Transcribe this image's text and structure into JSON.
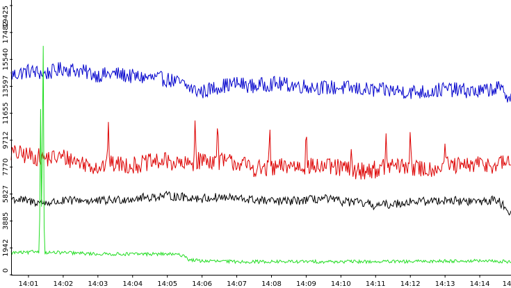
{
  "chart_data": {
    "type": "line",
    "title": "",
    "xlabel": "",
    "ylabel": "",
    "x_tick_labels": [
      "14:01",
      "14:02",
      "14:03",
      "14:04",
      "14:05",
      "14:06",
      "14:07",
      "14:08",
      "14:09",
      "14:10",
      "14:11",
      "14:12",
      "14:13",
      "14:14",
      "14"
    ],
    "y_tick_labels": [
      "0",
      "1942",
      "3885",
      "5827",
      "7770",
      "9712",
      "11655",
      "13597",
      "15540",
      "17482",
      "19425"
    ],
    "x_range_minutes": [
      0.5,
      14.9
    ],
    "ylim": [
      0,
      19425
    ],
    "grid": false,
    "legend": "none",
    "series": [
      {
        "color": "#0000cc",
        "x": [
          0.5,
          1.0,
          1.5,
          2.0,
          2.5,
          3.0,
          3.5,
          4.0,
          4.5,
          5.0,
          5.4,
          5.8,
          6.0,
          6.5,
          7.0,
          7.5,
          8.0,
          8.5,
          9.0,
          9.5,
          10.0,
          10.5,
          11.0,
          11.5,
          12.0,
          12.5,
          13.0,
          13.5,
          14.0,
          14.5,
          14.9
        ],
        "y": [
          14400,
          14700,
          14500,
          14900,
          14700,
          14400,
          14500,
          14300,
          14200,
          14100,
          13800,
          13300,
          13200,
          13600,
          13800,
          13600,
          13800,
          13700,
          13600,
          13500,
          13500,
          13400,
          13300,
          13300,
          13200,
          13200,
          13400,
          13300,
          13200,
          13500,
          12800
        ],
        "noise": 550
      },
      {
        "color": "#dd0000",
        "x": [
          0.5,
          1.0,
          1.5,
          2.0,
          2.5,
          3.0,
          3.5,
          4.0,
          4.5,
          5.0,
          5.5,
          6.0,
          6.5,
          7.0,
          7.5,
          8.0,
          8.5,
          9.0,
          9.5,
          10.0,
          10.5,
          11.0,
          11.5,
          12.0,
          12.5,
          13.0,
          13.5,
          14.0,
          14.5,
          14.9
        ],
        "y": [
          8800,
          8600,
          8400,
          8500,
          8100,
          7800,
          8000,
          7900,
          8100,
          8200,
          7900,
          8300,
          8200,
          8100,
          7700,
          7600,
          7900,
          7800,
          7800,
          7700,
          7500,
          7600,
          7900,
          7700,
          7600,
          7900,
          7800,
          8000,
          7900,
          8300
        ],
        "noise": 650,
        "spikes": [
          [
            3.3,
            11300
          ],
          [
            5.8,
            11400
          ],
          [
            6.45,
            11500
          ],
          [
            7.95,
            11200
          ],
          [
            9.0,
            11000
          ],
          [
            10.3,
            9200
          ],
          [
            11.3,
            10200
          ],
          [
            12.0,
            10800
          ],
          [
            13.0,
            9600
          ]
        ]
      },
      {
        "color": "#000000",
        "x": [
          0.5,
          1.0,
          1.5,
          2.0,
          2.5,
          3.0,
          3.5,
          4.0,
          4.5,
          5.0,
          5.5,
          6.0,
          6.5,
          7.0,
          7.5,
          8.0,
          8.5,
          9.0,
          9.5,
          10.0,
          10.5,
          11.0,
          11.5,
          12.0,
          12.5,
          13.0,
          13.5,
          14.0,
          14.5,
          14.9
        ],
        "y": [
          5500,
          5300,
          5200,
          5300,
          5400,
          5300,
          5400,
          5500,
          5600,
          5700,
          5600,
          5500,
          5600,
          5500,
          5400,
          5300,
          5300,
          5400,
          5500,
          5300,
          5200,
          5000,
          5100,
          5300,
          5300,
          5400,
          5300,
          5300,
          5400,
          4500
        ],
        "noise": 320
      },
      {
        "color": "#22dd22",
        "x": [
          0.5,
          1.0,
          1.2,
          1.4,
          2.0,
          3.0,
          4.0,
          5.0,
          5.5,
          5.6,
          6.0,
          7.0,
          8.0,
          9.0,
          10.0,
          11.0,
          12.0,
          13.0,
          14.0,
          14.9
        ],
        "y": [
          1600,
          1600,
          1700,
          1600,
          1600,
          1500,
          1500,
          1500,
          1400,
          1100,
          1000,
          950,
          950,
          950,
          950,
          950,
          950,
          1000,
          1000,
          950
        ],
        "noise": 120,
        "spikes": [
          [
            1.35,
            12400
          ],
          [
            1.42,
            19425
          ]
        ]
      }
    ]
  }
}
